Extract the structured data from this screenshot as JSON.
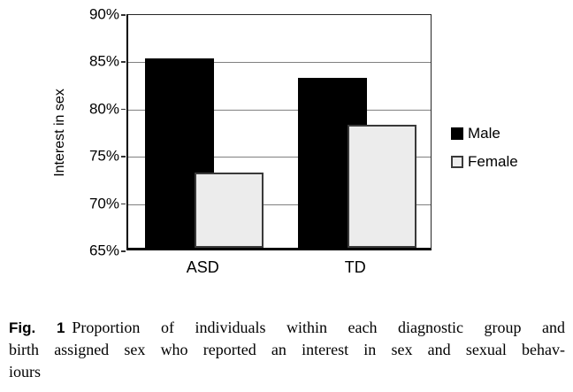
{
  "chart_data": {
    "type": "bar",
    "categories": [
      "ASD",
      "TD"
    ],
    "series": [
      {
        "name": "Male",
        "values": [
          85,
          83
        ],
        "color": "#000000",
        "border_color": "#000000"
      },
      {
        "name": "Female",
        "values": [
          73,
          78
        ],
        "color": "#ececec",
        "border_color": "#3a3a3a"
      }
    ],
    "title": "",
    "xlabel": "",
    "ylabel": "Interest in sex",
    "ylim": [
      65,
      90
    ],
    "y_ticks": [
      "90%",
      "85%",
      "80%",
      "75%",
      "70%",
      "65%"
    ],
    "y_tick_step": 5,
    "value_format": "percent",
    "grid": true,
    "gridline_color": "#808080",
    "legend_position": "right",
    "bars_overlap": true
  },
  "legend": {
    "items": [
      "Male",
      "Female"
    ]
  },
  "caption": {
    "fig_label": "Fig. 1",
    "lines": [
      "Proportion of individuals within each diagnostic group and",
      "birth assigned sex who reported an interest in sex and sexual behav-",
      "iours"
    ],
    "full_text": "Fig. 1 Proportion of individuals within each diagnostic group and birth assigned sex who reported an interest in sex and sexual behaviours"
  }
}
